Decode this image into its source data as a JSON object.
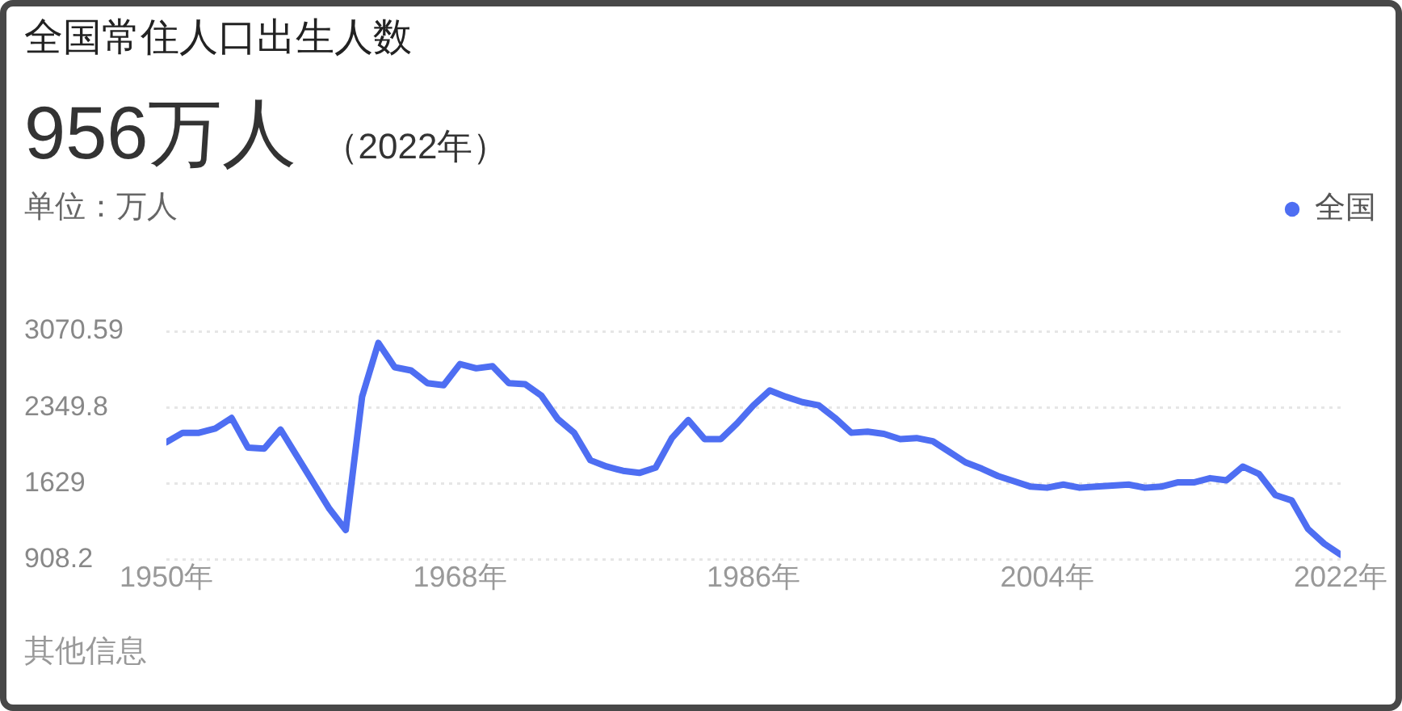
{
  "chart_data": {
    "type": "line",
    "title": "全国常住人口出生人数",
    "subtitle": "956万人",
    "ylabel": "单位：万人",
    "annotations": [
      "（2022年）",
      "其他信息"
    ],
    "x": [
      1950,
      1951,
      1952,
      1953,
      1954,
      1955,
      1956,
      1957,
      1958,
      1959,
      1960,
      1961,
      1962,
      1963,
      1964,
      1965,
      1966,
      1967,
      1968,
      1969,
      1970,
      1971,
      1972,
      1973,
      1974,
      1975,
      1976,
      1977,
      1978,
      1979,
      1980,
      1981,
      1982,
      1983,
      1984,
      1985,
      1986,
      1987,
      1988,
      1989,
      1990,
      1991,
      1992,
      1993,
      1994,
      1995,
      1996,
      1997,
      1998,
      1999,
      2000,
      2001,
      2002,
      2003,
      2004,
      2005,
      2006,
      2007,
      2008,
      2009,
      2010,
      2011,
      2012,
      2013,
      2014,
      2015,
      2016,
      2017,
      2018,
      2019,
      2020,
      2021,
      2022
    ],
    "series": [
      {
        "name": "全国",
        "color": "#4e6ef2",
        "values": [
          2020,
          2110,
          2110,
          2150,
          2250,
          1970,
          1960,
          2140,
          1890,
          1640,
          1390,
          1190,
          2450,
          2960,
          2730,
          2700,
          2580,
          2560,
          2760,
          2720,
          2740,
          2580,
          2570,
          2460,
          2240,
          2110,
          1850,
          1790,
          1750,
          1730,
          1780,
          2060,
          2230,
          2050,
          2050,
          2200,
          2370,
          2510,
          2450,
          2400,
          2370,
          2250,
          2110,
          2120,
          2100,
          2050,
          2060,
          2030,
          1930,
          1830,
          1770,
          1700,
          1650,
          1600,
          1590,
          1620,
          1590,
          1600,
          1610,
          1620,
          1590,
          1600,
          1640,
          1640,
          1680,
          1660,
          1790,
          1720,
          1520,
          1470,
          1200,
          1060,
          956
        ]
      }
    ],
    "xlim": [
      1950,
      2022
    ],
    "xticks": [
      {
        "value": 1950,
        "label": "1950年"
      },
      {
        "value": 1968,
        "label": "1968年"
      },
      {
        "value": 1986,
        "label": "1986年"
      },
      {
        "value": 2004,
        "label": "2004年"
      },
      {
        "value": 2022,
        "label": "2022年"
      }
    ],
    "ylim": [
      908.2,
      3070.59
    ],
    "yticks": [
      908.2,
      1629,
      2349.8,
      3070.59
    ],
    "grid": "y",
    "legend": "top right",
    "marker": "none",
    "line_style": "solid"
  }
}
